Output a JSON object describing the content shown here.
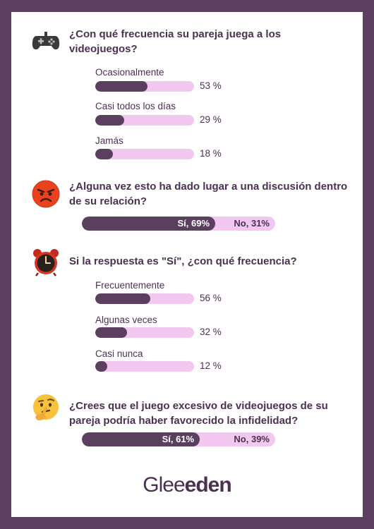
{
  "sections": [
    {
      "question": "¿Con qué frecuencia su pareja juega a los videojuegos?",
      "icon": "gamepad-icon",
      "options": [
        {
          "label": "Ocasionalmente",
          "value": 53,
          "pct_text": "53 %"
        },
        {
          "label": "Casi todos los días",
          "value": 29,
          "pct_text": "29 %"
        },
        {
          "label": "Jamás",
          "value": 18,
          "pct_text": "18 %"
        }
      ]
    },
    {
      "question": "¿Alguna vez esto ha dado lugar a una discusión dentro de su relación?",
      "icon": "angry-face-icon",
      "split": {
        "yes_label": "Sí, 69%",
        "no_label": "No, 31%",
        "yes_value": 69,
        "no_value": 31
      }
    },
    {
      "question": "Si la respuesta es \"Sí\", ¿con qué frecuencia?",
      "icon": "alarm-clock-icon",
      "options": [
        {
          "label": "Frecuentemente",
          "value": 56,
          "pct_text": "56 %"
        },
        {
          "label": "Algunas veces",
          "value": 32,
          "pct_text": "32 %"
        },
        {
          "label": "Casi nunca",
          "value": 12,
          "pct_text": "12 %"
        }
      ]
    },
    {
      "question": "¿Crees que el juego excesivo de videojuegos de su pareja podría haber favorecido la infidelidad?",
      "icon": "thinking-face-icon",
      "split": {
        "yes_label": "Sí, 61%",
        "no_label": "No, 39%",
        "yes_value": 61,
        "no_value": 39
      }
    }
  ],
  "logo": {
    "part1": "Glee",
    "part2": "eden"
  },
  "colors": {
    "background": "#5a3f5e",
    "accent": "#5a3f5e",
    "track": "#f2c8f0",
    "text": "#4b3150"
  }
}
